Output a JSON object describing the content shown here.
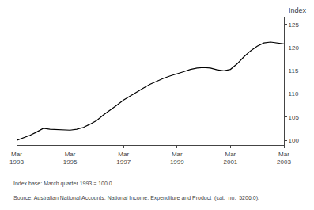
{
  "chart_data": {
    "type": "line",
    "ylabel": "Index",
    "annotations": [
      "Index base: March quarter 1993 = 100.0.",
      "Source: Australian National Accounts: National Income, Expenditure and Product  (cat.  no.  5206.0)."
    ],
    "categories": [
      "Mar\n1993",
      null,
      null,
      null,
      null,
      null,
      null,
      null,
      "Mar\n1995",
      null,
      null,
      null,
      null,
      null,
      null,
      null,
      "Mar\n1997",
      null,
      null,
      null,
      null,
      null,
      null,
      null,
      "Mar\n1999",
      null,
      null,
      null,
      null,
      null,
      null,
      null,
      "Mar\n2001",
      null,
      null,
      null,
      null,
      null,
      null,
      null,
      "Mar\n2003"
    ],
    "values": [
      100.0,
      100.5,
      101.1,
      101.8,
      102.6,
      102.4,
      102.3,
      102.2,
      102.2,
      102.4,
      102.8,
      103.5,
      104.3,
      105.5,
      106.5,
      107.6,
      108.7,
      109.6,
      110.5,
      111.3,
      112.1,
      112.8,
      113.4,
      113.9,
      114.3,
      114.8,
      115.3,
      115.6,
      115.7,
      115.6,
      115.2,
      115.0,
      115.3,
      116.5,
      118.0,
      119.3,
      120.3,
      121.0,
      121.2,
      121.0,
      120.8
    ],
    "color": "#000000",
    "ylim": [
      99.0,
      126.5
    ],
    "yticks": [
      100,
      105,
      110,
      115,
      120,
      125
    ],
    "grid": false
  }
}
